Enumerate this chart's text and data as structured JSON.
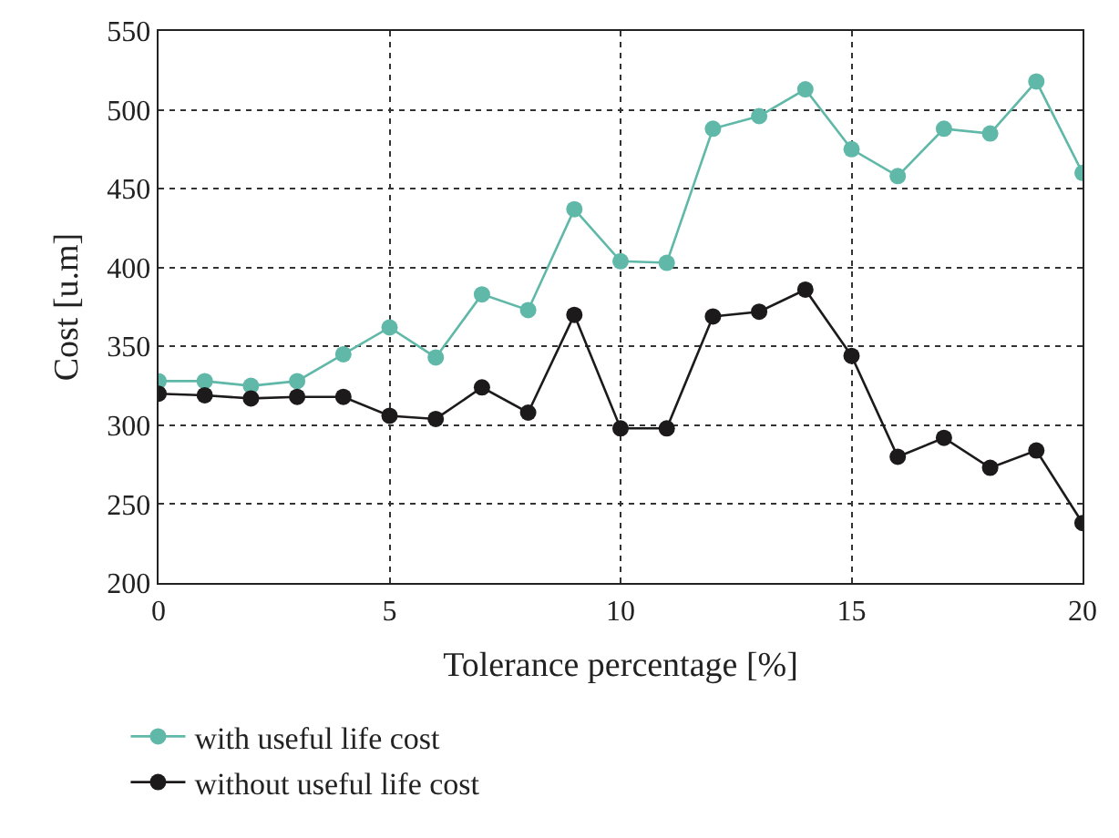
{
  "chart_data": {
    "type": "line",
    "xlabel": "Tolerance percentage [%]",
    "ylabel": "Cost [u.m]",
    "x": [
      0,
      1,
      2,
      3,
      4,
      5,
      6,
      7,
      8,
      9,
      10,
      11,
      12,
      13,
      14,
      15,
      16,
      17,
      18,
      19,
      20
    ],
    "series": [
      {
        "name": "with useful life cost",
        "color": "#5fb8a8",
        "values": [
          328,
          328,
          325,
          328,
          345,
          362,
          343,
          383,
          373,
          437,
          404,
          403,
          488,
          496,
          513,
          475,
          458,
          488,
          485,
          518,
          460
        ]
      },
      {
        "name": "without useful life cost",
        "color": "#1c1a1b",
        "values": [
          320,
          319,
          317,
          318,
          318,
          306,
          304,
          324,
          308,
          370,
          298,
          298,
          369,
          372,
          386,
          344,
          280,
          292,
          273,
          284,
          238
        ]
      }
    ],
    "xlim": [
      0,
      20
    ],
    "xticks": [
      0,
      5,
      10,
      15,
      20
    ],
    "ylim": [
      200,
      550
    ],
    "yticks": [
      200,
      250,
      300,
      350,
      400,
      450,
      500,
      550
    ],
    "grid": true,
    "legend": "bottom left",
    "marker": "circle",
    "line_style": "solid"
  }
}
